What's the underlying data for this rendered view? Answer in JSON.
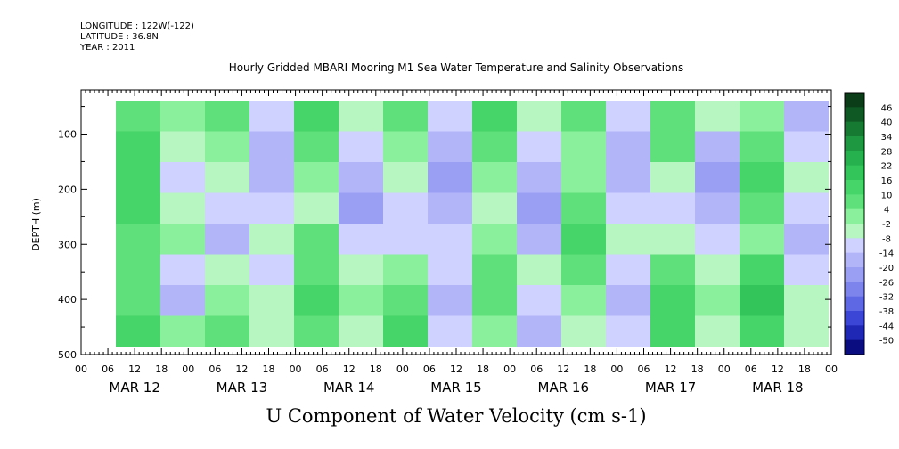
{
  "header": {
    "longitude": "LONGITUDE : 122W(-122)",
    "latitude": "LATITUDE : 36.8N",
    "year": "YEAR : 2011"
  },
  "chart_data": {
    "type": "heatmap",
    "title": "Hourly Gridded MBARI Mooring M1 Sea Water Temperature and Salinity Observations",
    "xlabel": "U Component of Water Velocity (cm s-1)",
    "ylabel": "DEPTH (m)",
    "ylim": [
      500,
      20
    ],
    "y_reversed": true,
    "yticks": [
      100,
      200,
      300,
      400,
      500
    ],
    "x_hour_ticks": [
      "00",
      "06",
      "12",
      "18",
      "00",
      "06",
      "12",
      "18",
      "00",
      "06",
      "12",
      "18",
      "00",
      "06",
      "12",
      "18",
      "00",
      "06",
      "12",
      "18",
      "00",
      "06",
      "12",
      "18",
      "00",
      "06",
      "12",
      "18",
      "00"
    ],
    "x_date_labels": [
      "MAR 12",
      "MAR 13",
      "MAR 14",
      "MAR 15",
      "MAR 16",
      "MAR 17",
      "MAR 18"
    ],
    "data_start": "MAR 12 08",
    "data_end": "MAR 18 23",
    "colorbar_labels": [
      "46",
      "40",
      "34",
      "28",
      "22",
      "16",
      "10",
      "4",
      "-2",
      "-8",
      "-14",
      "-20",
      "-26",
      "-32",
      "-38",
      "-44",
      "-50"
    ],
    "colorbar_colors": [
      "#0a3d18",
      "#0f5a24",
      "#177a33",
      "#1e9841",
      "#27b14e",
      "#33c45a",
      "#46d568",
      "#5fe07a",
      "#8af09c",
      "#b7f5c1",
      "#cfd1ff",
      "#b3b5f9",
      "#9b9ff3",
      "#7d84ec",
      "#5f68e4",
      "#3c46d6",
      "#1f27b5",
      "#0a0d80"
    ],
    "series": [
      {
        "name": "",
        "values": [
          [
            10,
            14,
            16,
            12,
            8,
            6,
            9,
            12
          ],
          [
            4,
            -6,
            -12,
            -4,
            2,
            -8,
            -14,
            0
          ],
          [
            6,
            2,
            -4,
            -10,
            -16,
            -6,
            4,
            8
          ],
          [
            -8,
            -14,
            -18,
            -12,
            -6,
            -10,
            -4,
            -2
          ],
          [
            12,
            10,
            4,
            -2,
            6,
            10,
            14,
            8
          ],
          [
            -2,
            -10,
            -16,
            -20,
            -12,
            -4,
            2,
            -6
          ],
          [
            8,
            4,
            -6,
            -12,
            -8,
            0,
            6,
            12
          ],
          [
            -10,
            -16,
            -20,
            -14,
            -8,
            -12,
            -18,
            -10
          ],
          [
            14,
            8,
            2,
            -4,
            4,
            10,
            6,
            2
          ],
          [
            -4,
            -12,
            -18,
            -22,
            -14,
            -6,
            -10,
            -16
          ],
          [
            6,
            0,
            4,
            10,
            14,
            8,
            2,
            -4
          ],
          [
            -12,
            -18,
            -14,
            -8,
            -4,
            -10,
            -16,
            -8
          ],
          [
            10,
            6,
            -2,
            -8,
            -2,
            6,
            12,
            16
          ],
          [
            -6,
            -14,
            -20,
            -16,
            -10,
            -4,
            0,
            -6
          ],
          [
            4,
            10,
            14,
            8,
            2,
            12,
            18,
            14
          ],
          [
            -14,
            -8,
            -4,
            -10,
            -16,
            -12,
            -6,
            -2
          ]
        ]
      }
    ]
  }
}
